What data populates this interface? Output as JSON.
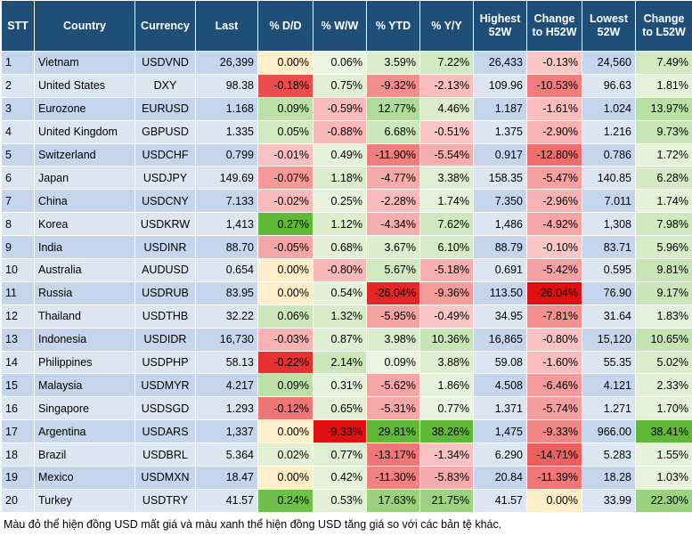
{
  "table": {
    "header": [
      "STT",
      "Country",
      "Currency",
      "Last",
      "% D/D",
      "% W/W",
      "% YTD",
      "% Y/Y",
      "Highest 52W",
      "Change to H52W",
      "Lowest 52W",
      "Change to L52W"
    ],
    "rows": [
      [
        "1",
        "Vietnam",
        "USDVND",
        "26,399",
        "0.00%",
        "0.06%",
        "3.59%",
        "7.22%",
        "26,433",
        "-0.13%",
        "24,560",
        "7.49%"
      ],
      [
        "2",
        "United States",
        "DXY",
        "98.38",
        "-0.18%",
        "0.75%",
        "-9.32%",
        "-2.13%",
        "109.96",
        "-10.53%",
        "96.63",
        "1.81%"
      ],
      [
        "3",
        "Eurozone",
        "EURUSD",
        "1.168",
        "0.09%",
        "-0.59%",
        "12.77%",
        "4.46%",
        "1.187",
        "-1.61%",
        "1.024",
        "13.97%"
      ],
      [
        "4",
        "United Kingdom",
        "GBPUSD",
        "1.335",
        "0.05%",
        "-0.88%",
        "6.68%",
        "-0.51%",
        "1.375",
        "-2.90%",
        "1.216",
        "9.73%"
      ],
      [
        "5",
        "Switzerland",
        "USDCHF",
        "0.799",
        "-0.01%",
        "0.49%",
        "-11.90%",
        "-5.54%",
        "0.917",
        "-12.80%",
        "0.786",
        "1.72%"
      ],
      [
        "6",
        "Japan",
        "USDJPY",
        "149.69",
        "-0.07%",
        "1.18%",
        "-4.77%",
        "3.38%",
        "158.35",
        "-5.47%",
        "140.85",
        "6.28%"
      ],
      [
        "7",
        "China",
        "USDCNY",
        "7.133",
        "-0.02%",
        "0.25%",
        "-2.28%",
        "1.74%",
        "7.350",
        "-2.96%",
        "7.011",
        "1.74%"
      ],
      [
        "8",
        "Korea",
        "USDKRW",
        "1,413",
        "0.27%",
        "1.12%",
        "-4.34%",
        "7.62%",
        "1,486",
        "-4.92%",
        "1,308",
        "7.98%"
      ],
      [
        "9",
        "India",
        "USDINR",
        "88.70",
        "-0.05%",
        "0.68%",
        "3.67%",
        "6.10%",
        "88.79",
        "-0.10%",
        "83.71",
        "5.96%"
      ],
      [
        "10",
        "Australia",
        "AUDUSD",
        "0.654",
        "0.00%",
        "-0.80%",
        "5.67%",
        "-5.18%",
        "0.691",
        "-5.42%",
        "0.595",
        "9.81%"
      ],
      [
        "11",
        "Russia",
        "USDRUB",
        "83.95",
        "0.00%",
        "0.54%",
        "-26.04%",
        "-9.36%",
        "113.50",
        "-26.04%",
        "76.90",
        "9.17%"
      ],
      [
        "12",
        "Thailand",
        "USDTHB",
        "32.22",
        "0.06%",
        "1.32%",
        "-5.95%",
        "-0.49%",
        "34.95",
        "-7.81%",
        "31.64",
        "1.83%"
      ],
      [
        "13",
        "Indonesia",
        "USDIDR",
        "16,730",
        "-0.03%",
        "0.87%",
        "3.98%",
        "10.36%",
        "16,865",
        "-0.80%",
        "15,120",
        "10.65%"
      ],
      [
        "14",
        "Philippines",
        "USDPHP",
        "58.13",
        "-0.22%",
        "2.14%",
        "0.09%",
        "3.88%",
        "59.08",
        "-1.60%",
        "55.35",
        "5.02%"
      ],
      [
        "15",
        "Malaysia",
        "USDMYR",
        "4.217",
        "0.09%",
        "0.31%",
        "-5.62%",
        "1.86%",
        "4.508",
        "-6.46%",
        "4.121",
        "2.33%"
      ],
      [
        "16",
        "Singapore",
        "USDSGD",
        "1.293",
        "-0.12%",
        "0.65%",
        "-5.31%",
        "0.77%",
        "1.371",
        "-5.74%",
        "1.271",
        "1.70%"
      ],
      [
        "17",
        "Argentina",
        "USDARS",
        "1,337",
        "0.00%",
        "-9.33%",
        "29.81%",
        "38.26%",
        "1,475",
        "-9.33%",
        "966.00",
        "38.41%"
      ],
      [
        "18",
        "Brazil",
        "USDBRL",
        "5.364",
        "0.02%",
        "0.77%",
        "-13.17%",
        "-1.34%",
        "6.290",
        "-14.71%",
        "5.283",
        "1.55%"
      ],
      [
        "19",
        "Mexico",
        "USDMXN",
        "18.47",
        "0.00%",
        "0.42%",
        "-11.30%",
        "-5.83%",
        "20.84",
        "-11.39%",
        "18.28",
        "1.03%"
      ],
      [
        "20",
        "Turkey",
        "USDTRY",
        "41.57",
        "0.24%",
        "0.53%",
        "17.63%",
        "21.75%",
        "41.57",
        "0.00%",
        "33.99",
        "22.30%"
      ]
    ]
  },
  "footer": "Màu đỏ thể hiện đồng USD mất giá và màu xanh thể hiện đồng USD tăng giá so với các bản tệ khác."
}
